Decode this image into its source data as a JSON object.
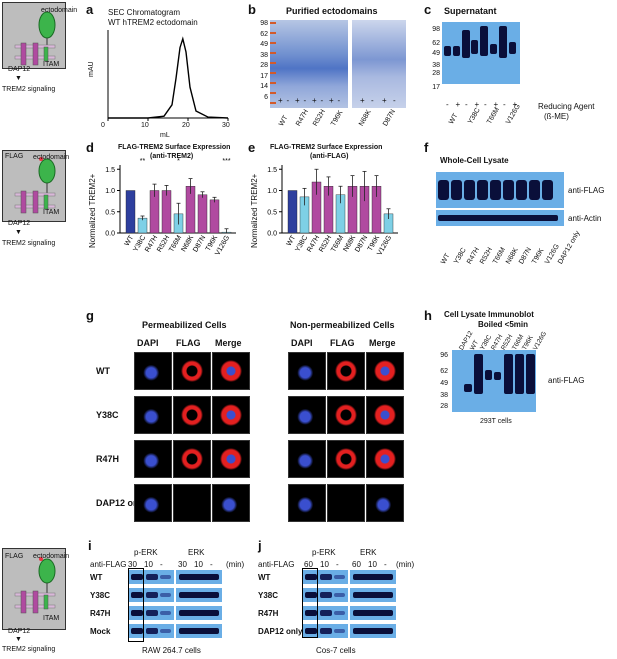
{
  "schematic": {
    "ectodomain": "ectodomain",
    "itam": "ITAM",
    "dap12": "DAP12",
    "signaling": "TREM2 signaling",
    "flag": "FLAG"
  },
  "panel_a": {
    "letter": "a",
    "title_line1": "SEC Chromatogram",
    "title_line2": "WT hTREM2 ectodomain",
    "xlabel": "mL",
    "ylabel": "mAU",
    "xticks": [
      "0",
      "10",
      "20",
      "30"
    ]
  },
  "panel_b": {
    "letter": "b",
    "title": "Purified ectodomains",
    "ladder": [
      "98",
      "62",
      "49",
      "38",
      "28",
      "17",
      "14",
      "6"
    ],
    "lanes": [
      "WT",
      "R47H",
      "R52H",
      "T96K",
      "N68K",
      "D87N"
    ],
    "pm": [
      "+",
      "-",
      "+",
      "-",
      "+",
      "-",
      "+",
      "-",
      "+",
      "-",
      "+",
      "-"
    ]
  },
  "panel_c": {
    "letter": "c",
    "title": "Supernatant",
    "ladder": [
      "98",
      "62",
      "49",
      "38",
      "28",
      "17"
    ],
    "lanes": [
      "WT",
      "Y38C",
      "T66M",
      "V126G"
    ],
    "pm": [
      "-",
      "+",
      "-",
      "+",
      "-",
      "+",
      "-",
      "+"
    ],
    "reducing": "Reducing Agent",
    "reducing2": "(ß-ME)"
  },
  "panel_d": {
    "letter": "d",
    "title_line1": "FLAG-TREM2 Surface Expression",
    "title_line2": "(anti-TREM2)",
    "ylabel": "Normalized TREM2+",
    "yticks": [
      "0.0",
      "0.5",
      "1.0",
      "1.5"
    ],
    "sig": [
      "**",
      "*",
      "***"
    ]
  },
  "panel_e": {
    "letter": "e",
    "title_line1": "FLAG-TREM2 Surface Expression",
    "title_line2": "(anti-FLAG)",
    "ylabel": "Normalized TREM2+",
    "yticks": [
      "0.0",
      "0.5",
      "1.0",
      "1.5"
    ]
  },
  "panel_f": {
    "letter": "f",
    "title": "Whole-Cell Lysate",
    "band1": "anti-FLAG",
    "band2": "anti-Actin",
    "lanes": [
      "WT",
      "Y38C",
      "R47H",
      "R52H",
      "T66M",
      "N68K",
      "D87N",
      "T96K",
      "V126G",
      "DAP12 only"
    ]
  },
  "panel_g": {
    "letter": "g",
    "perm": "Permeabilized Cells",
    "nonperm": "Non-permeabilized Cells",
    "cols": [
      "DAPI",
      "FLAG",
      "Merge"
    ],
    "rows": [
      "WT",
      "Y38C",
      "R47H",
      "DAP12 only"
    ]
  },
  "panel_h": {
    "letter": "h",
    "title_line1": "Cell Lysate Immunoblot",
    "title_line2": "Boiled <5min",
    "ladder": [
      "96",
      "62",
      "49",
      "38",
      "28"
    ],
    "lanes": [
      "DAP12",
      "WT",
      "Y38C",
      "R47H",
      "R52H",
      "T66M",
      "T96K",
      "V126G"
    ],
    "band": "anti-FLAG",
    "cells": "293T cells"
  },
  "panel_i": {
    "letter": "i",
    "perk": "p-ERK",
    "erk": "ERK",
    "antiflag": "anti-FLAG",
    "times": [
      "30",
      "10",
      "-"
    ],
    "times2": [
      "30",
      "10",
      "-"
    ],
    "unit": "(min)",
    "rows": [
      "WT",
      "Y38C",
      "R47H",
      "Mock"
    ],
    "cells": "RAW 264.7 cells"
  },
  "panel_j": {
    "letter": "j",
    "perk": "p-ERK",
    "erk": "ERK",
    "antiflag": "anti-FLAG",
    "times": [
      "60",
      "10",
      "-"
    ],
    "times2": [
      "60",
      "10",
      "-"
    ],
    "unit": "(min)",
    "rows": [
      "WT",
      "Y38C",
      "R47H",
      "DAP12 only"
    ],
    "cells": "Cos-7 cells"
  },
  "chart_data": [
    {
      "type": "line",
      "panel": "a",
      "x": [
        0,
        5,
        10,
        14,
        16,
        17,
        18,
        18.7,
        19.5,
        20.5,
        22,
        25,
        30
      ],
      "y": [
        0,
        0,
        0,
        2,
        15,
        45,
        80,
        90,
        75,
        35,
        8,
        1,
        0
      ],
      "xlim": [
        0,
        30
      ],
      "xlabel": "mL",
      "ylabel": "mAU"
    },
    {
      "type": "bar",
      "panel": "d",
      "categories": [
        "WT",
        "Y38C",
        "R47H",
        "R52H",
        "T66M",
        "N68K",
        "D87N",
        "T96K",
        "V126G"
      ],
      "values": [
        1.0,
        0.35,
        1.0,
        1.0,
        0.45,
        1.1,
        0.9,
        0.78,
        0.02
      ],
      "errors": [
        0,
        0.05,
        0.15,
        0.12,
        0.25,
        0.18,
        0.07,
        0.06,
        0.08
      ],
      "ylim": [
        0,
        1.6
      ],
      "ylabel": "Normalized TREM2+",
      "colors": [
        "#2e3f9e",
        "#7ed0e6",
        "#b04aa0",
        "#b04aa0",
        "#7ed0e6",
        "#b04aa0",
        "#b04aa0",
        "#b04aa0",
        "#7ed0e6"
      ]
    },
    {
      "type": "bar",
      "panel": "e",
      "categories": [
        "WT",
        "Y38C",
        "R47H",
        "R52H",
        "T66M",
        "N68K",
        "D87N",
        "T96K",
        "V126G"
      ],
      "values": [
        1.0,
        0.85,
        1.2,
        1.1,
        0.9,
        1.1,
        1.1,
        1.1,
        0.45
      ],
      "errors": [
        0,
        0.2,
        0.3,
        0.22,
        0.2,
        0.25,
        0.35,
        0.25,
        0.12
      ],
      "ylim": [
        0,
        1.6
      ],
      "ylabel": "Normalized TREM2+",
      "colors": [
        "#2e3f9e",
        "#7ed0e6",
        "#b04aa0",
        "#b04aa0",
        "#7ed0e6",
        "#b04aa0",
        "#b04aa0",
        "#b04aa0",
        "#7ed0e6"
      ]
    }
  ]
}
